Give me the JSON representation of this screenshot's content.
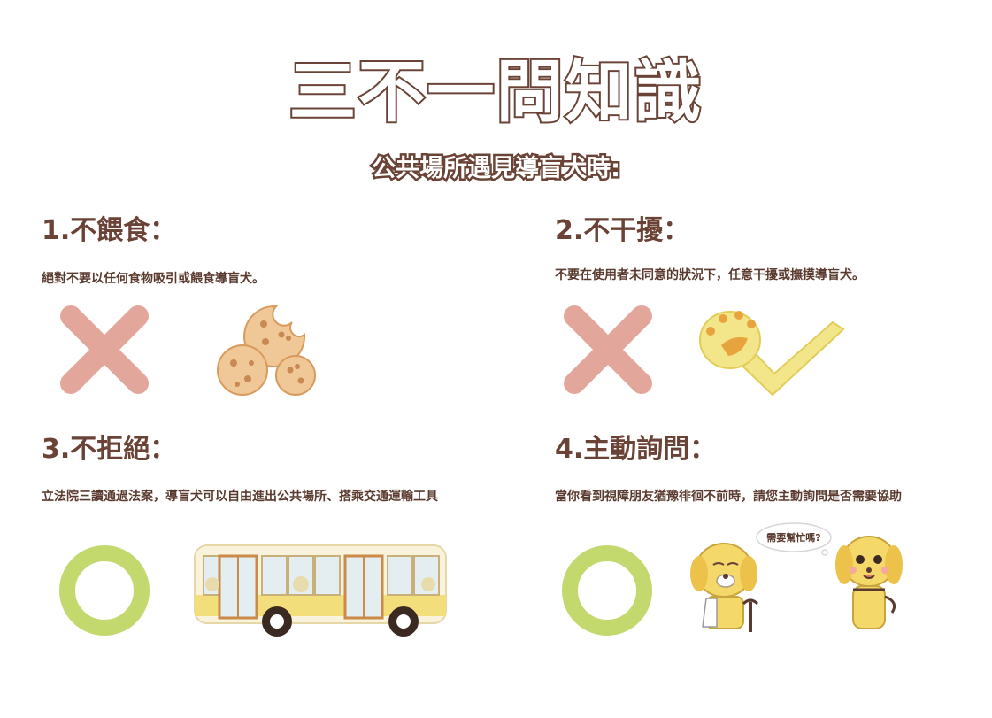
{
  "title": "三不一問知識",
  "subtitle": "公共場所遇見導盲犬時:",
  "sections": [
    {
      "title": "1.不餵食：",
      "desc": "絕對不要以任何食物吸引或餵食導盲犬。"
    },
    {
      "title": "2.不干擾：",
      "desc": "不要在使用者未同意的狀況下，任意干擾或撫摸導盲犬。"
    },
    {
      "title": "3.不拒絕：",
      "desc": "立法院三讀通過法案，導盲犬可以自由進出公共場所、搭乘交通運輸工具"
    },
    {
      "title": "4.主動詢問：",
      "desc": "當你看到視障朋友猶豫徘徊不前時，請您主動詢問是否需要協助"
    }
  ],
  "speech_bubble": "需要幫忙嗎?",
  "icons": [
    "cross-icon",
    "cookies-icon",
    "paw-check-icon",
    "circle-icon",
    "bus-icon",
    "dog-characters-icon"
  ],
  "colors": {
    "title_stroke": "#6b4336",
    "text": "#5a3a2e",
    "cross": "#e3a69a",
    "circle": "#c3d86d",
    "cookie": "#ecc08f",
    "paw": "#f3e58a"
  }
}
